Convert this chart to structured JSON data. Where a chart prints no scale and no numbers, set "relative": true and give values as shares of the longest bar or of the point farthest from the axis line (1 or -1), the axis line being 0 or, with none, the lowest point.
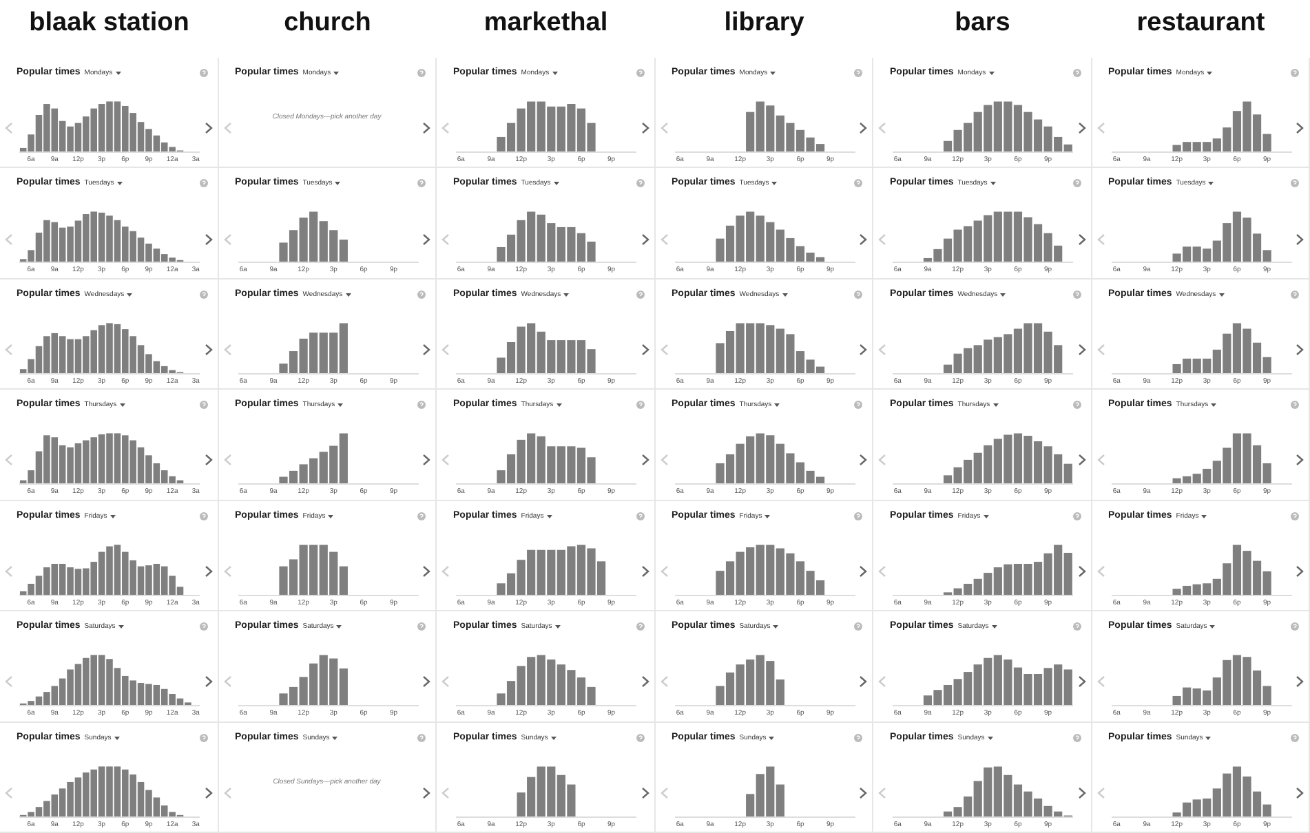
{
  "chart_data": [
    {
      "type": "bar",
      "title": "Popular times",
      "subtitle": "Mondays",
      "annotations": [
        "blaak station"
      ],
      "relative": true,
      "color": "#7f7f7f",
      "categories": [
        null,
        "6a",
        null,
        null,
        "9a",
        null,
        null,
        "12p",
        null,
        null,
        "3p",
        null,
        null,
        "6p",
        null,
        null,
        "9p",
        null,
        null,
        "12a",
        null,
        null,
        "3a"
      ],
      "values": [
        0.07,
        0.34,
        0.73,
        0.95,
        0.86,
        0.61,
        0.5,
        0.57,
        0.7,
        0.86,
        0.95,
        1,
        1,
        0.91,
        0.77,
        0.59,
        0.45,
        0.32,
        0.18,
        0.09,
        0.02,
        null,
        null
      ]
    },
    {
      "type": "bar",
      "title": "Popular times",
      "subtitle": "Mondays",
      "annotations": [
        "markethal"
      ],
      "relative": true,
      "color": "#7f7f7f",
      "categories": [
        "6a",
        null,
        null,
        "9a",
        null,
        null,
        "12p",
        null,
        null,
        "3p",
        null,
        null,
        "6p",
        null,
        null,
        "9p",
        null,
        null
      ],
      "values": [
        null,
        null,
        null,
        null,
        0.29,
        0.57,
        0.86,
        1,
        1,
        0.9,
        0.9,
        0.95,
        0.86,
        0.57,
        null,
        null,
        null,
        null
      ]
    },
    {
      "type": "bar",
      "title": "Popular times",
      "subtitle": "Mondays",
      "annotations": [
        "library"
      ],
      "relative": true,
      "color": "#7f7f7f",
      "categories": [
        "6a",
        null,
        null,
        "9a",
        null,
        null,
        "12p",
        null,
        null,
        "3p",
        null,
        null,
        "6p",
        null,
        null,
        "9p",
        null,
        null
      ],
      "values": [
        null,
        null,
        null,
        null,
        null,
        null,
        null,
        0.79,
        1,
        0.92,
        0.72,
        0.57,
        0.43,
        0.28,
        0.15,
        null,
        null,
        null
      ]
    },
    {
      "type": "bar",
      "title": "Popular times",
      "subtitle": "Mondays",
      "annotations": [
        "bars"
      ],
      "relative": true,
      "color": "#7f7f7f",
      "categories": [
        "6a",
        null,
        null,
        "9a",
        null,
        null,
        "12p",
        null,
        null,
        "3p",
        null,
        null,
        "6p",
        null,
        null,
        "9p",
        null,
        null
      ],
      "values": [
        null,
        null,
        null,
        null,
        null,
        0.21,
        0.43,
        0.57,
        0.79,
        0.93,
        1,
        1,
        0.93,
        0.79,
        0.64,
        0.5,
        0.29,
        0.14
      ]
    },
    {
      "type": "bar",
      "title": "Popular times",
      "subtitle": "Mondays",
      "annotations": [
        "restaurant"
      ],
      "relative": true,
      "color": "#7f7f7f",
      "categories": [
        "6a",
        null,
        null,
        "9a",
        null,
        null,
        "12p",
        null,
        null,
        "3p",
        null,
        null,
        "6p",
        null,
        null,
        "9p",
        null,
        null
      ],
      "values": [
        null,
        null,
        null,
        null,
        null,
        null,
        0.13,
        0.19,
        0.19,
        0.19,
        0.26,
        0.48,
        0.81,
        1,
        0.74,
        0.35,
        null,
        null
      ]
    },
    {
      "type": "bar",
      "title": "Popular times",
      "subtitle": "Tuesdays",
      "relative": true,
      "color": "#7f7f7f",
      "categories": [
        null,
        "6a",
        null,
        null,
        "9a",
        null,
        null,
        "12p",
        null,
        null,
        "3p",
        null,
        null,
        "6p",
        null,
        null,
        "9p",
        null,
        null,
        "12a",
        null,
        null,
        "3a"
      ],
      "values": [
        0.05,
        0.23,
        0.58,
        0.83,
        0.79,
        0.68,
        0.7,
        0.82,
        0.95,
        1,
        0.98,
        0.92,
        0.83,
        0.7,
        0.61,
        0.48,
        0.36,
        0.26,
        0.15,
        0.08,
        0.03,
        null,
        null
      ]
    },
    {
      "type": "bar",
      "title": "Popular times",
      "subtitle": "Tuesdays",
      "annotations": [
        "church",
        "Popular times",
        "Mondays",
        "Closed Mondays—pick another day"
      ],
      "relative": true,
      "color": "#7f7f7f",
      "categories": [
        "6a",
        null,
        null,
        "9a",
        null,
        null,
        "12p",
        null,
        null,
        "3p",
        null,
        null,
        "6p",
        null,
        null,
        "9p",
        null,
        null
      ],
      "values": [
        null,
        null,
        null,
        null,
        0.38,
        0.63,
        0.88,
        1,
        0.81,
        0.63,
        0.44,
        null,
        null,
        null,
        null,
        null,
        null,
        null
      ]
    },
    {
      "type": "bar",
      "title": "Popular times",
      "subtitle": "Tuesdays",
      "relative": true,
      "color": "#7f7f7f",
      "categories": [
        "6a",
        null,
        null,
        "9a",
        null,
        null,
        "12p",
        null,
        null,
        "3p",
        null,
        null,
        "6p",
        null,
        null,
        "9p",
        null,
        null
      ],
      "values": [
        null,
        null,
        null,
        null,
        0.29,
        0.54,
        0.83,
        1,
        0.94,
        0.77,
        0.69,
        0.69,
        0.57,
        0.4,
        null,
        null,
        null,
        null
      ]
    },
    {
      "type": "bar",
      "title": "Popular times",
      "subtitle": "Tuesdays",
      "relative": true,
      "color": "#7f7f7f",
      "categories": [
        "6a",
        null,
        null,
        "9a",
        null,
        null,
        "12p",
        null,
        null,
        "3p",
        null,
        null,
        "6p",
        null,
        null,
        "9p",
        null,
        null
      ],
      "values": [
        null,
        null,
        null,
        null,
        0.46,
        0.72,
        0.92,
        1,
        0.92,
        0.79,
        0.64,
        0.47,
        0.31,
        0.18,
        0.09,
        null,
        null,
        null
      ]
    },
    {
      "type": "bar",
      "title": "Popular times",
      "subtitle": "Tuesdays",
      "relative": true,
      "color": "#7f7f7f",
      "categories": [
        "6a",
        null,
        null,
        "9a",
        null,
        null,
        "12p",
        null,
        null,
        "3p",
        null,
        null,
        "6p",
        null,
        null,
        "9p",
        null,
        null
      ],
      "values": [
        null,
        null,
        null,
        0.07,
        0.25,
        0.46,
        0.64,
        0.71,
        0.82,
        0.93,
        1,
        1,
        1,
        0.89,
        0.75,
        0.57,
        0.32,
        null
      ]
    },
    {
      "type": "bar",
      "title": "Popular times",
      "subtitle": "Tuesdays",
      "relative": true,
      "color": "#7f7f7f",
      "categories": [
        "6a",
        null,
        null,
        "9a",
        null,
        null,
        "12p",
        null,
        null,
        "3p",
        null,
        null,
        "6p",
        null,
        null,
        "9p",
        null,
        null
      ],
      "values": [
        null,
        null,
        null,
        null,
        null,
        null,
        0.16,
        0.3,
        0.3,
        0.26,
        0.42,
        0.77,
        1,
        0.88,
        0.56,
        0.23,
        null,
        null
      ]
    },
    {
      "type": "bar",
      "title": "Popular times",
      "subtitle": "Wednesdays",
      "relative": true,
      "color": "#7f7f7f",
      "categories": [
        null,
        "6a",
        null,
        null,
        "9a",
        null,
        null,
        "12p",
        null,
        null,
        "3p",
        null,
        null,
        "6p",
        null,
        null,
        "9p",
        null,
        null,
        "12a",
        null,
        null,
        "3a"
      ],
      "values": [
        0.08,
        0.28,
        0.54,
        0.74,
        0.8,
        0.74,
        0.68,
        0.68,
        0.74,
        0.86,
        0.96,
        1,
        0.98,
        0.88,
        0.74,
        0.56,
        0.38,
        0.24,
        0.14,
        0.06,
        0.02,
        null,
        null
      ]
    },
    {
      "type": "bar",
      "title": "Popular times",
      "subtitle": "Wednesdays",
      "relative": true,
      "color": "#7f7f7f",
      "categories": [
        "6a",
        null,
        null,
        "9a",
        null,
        null,
        "12p",
        null,
        null,
        "3p",
        null,
        null,
        "6p",
        null,
        null,
        "9p",
        null,
        null
      ],
      "values": [
        null,
        null,
        null,
        null,
        0.19,
        0.44,
        0.69,
        0.81,
        0.81,
        0.81,
        1,
        null,
        null,
        null,
        null,
        null,
        null,
        null
      ]
    },
    {
      "type": "bar",
      "title": "Popular times",
      "subtitle": "Wednesdays",
      "relative": true,
      "color": "#7f7f7f",
      "categories": [
        "6a",
        null,
        null,
        "9a",
        null,
        null,
        "12p",
        null,
        null,
        "3p",
        null,
        null,
        "6p",
        null,
        null,
        "9p",
        null,
        null
      ],
      "values": [
        null,
        null,
        null,
        null,
        0.31,
        0.62,
        0.93,
        1,
        0.83,
        0.66,
        0.66,
        0.66,
        0.66,
        0.48,
        null,
        null,
        null,
        null
      ]
    },
    {
      "type": "bar",
      "title": "Popular times",
      "subtitle": "Wednesdays",
      "relative": true,
      "color": "#7f7f7f",
      "categories": [
        "6a",
        null,
        null,
        "9a",
        null,
        null,
        "12p",
        null,
        null,
        "3p",
        null,
        null,
        "6p",
        null,
        null,
        "9p",
        null,
        null
      ],
      "values": [
        null,
        null,
        null,
        null,
        0.6,
        0.84,
        1,
        1,
        1,
        0.96,
        0.89,
        0.78,
        0.44,
        0.27,
        0.13,
        null,
        null,
        null
      ]
    },
    {
      "type": "bar",
      "title": "Popular times",
      "subtitle": "Wednesdays",
      "relative": true,
      "color": "#7f7f7f",
      "categories": [
        "6a",
        null,
        null,
        "9a",
        null,
        null,
        "12p",
        null,
        null,
        "3p",
        null,
        null,
        "6p",
        null,
        null,
        "9p",
        null,
        null
      ],
      "values": [
        null,
        null,
        null,
        null,
        null,
        0.17,
        0.39,
        0.5,
        0.56,
        0.67,
        0.72,
        0.78,
        0.89,
        1,
        1,
        0.83,
        0.56,
        null
      ]
    },
    {
      "type": "bar",
      "title": "Popular times",
      "subtitle": "Wednesdays",
      "relative": true,
      "color": "#7f7f7f",
      "categories": [
        "6a",
        null,
        null,
        "9a",
        null,
        null,
        "12p",
        null,
        null,
        "3p",
        null,
        null,
        "6p",
        null,
        null,
        "9p",
        null,
        null
      ],
      "values": [
        null,
        null,
        null,
        null,
        null,
        null,
        0.18,
        0.29,
        0.29,
        0.29,
        0.47,
        0.79,
        1,
        0.89,
        0.61,
        0.32,
        null,
        null
      ]
    },
    {
      "type": "bar",
      "title": "Popular times",
      "subtitle": "Thursdays",
      "relative": true,
      "color": "#7f7f7f",
      "categories": [
        null,
        "6a",
        null,
        null,
        "9a",
        null,
        null,
        "12p",
        null,
        null,
        "3p",
        null,
        null,
        "6p",
        null,
        null,
        "9p",
        null,
        null,
        "12a",
        null,
        null,
        "3a"
      ],
      "values": [
        0.06,
        0.26,
        0.64,
        0.96,
        0.92,
        0.76,
        0.72,
        0.8,
        0.86,
        0.92,
        0.98,
        1,
        1,
        0.96,
        0.86,
        0.72,
        0.56,
        0.4,
        0.26,
        0.14,
        0.06,
        null,
        null
      ]
    },
    {
      "type": "bar",
      "title": "Popular times",
      "subtitle": "Thursdays",
      "relative": true,
      "color": "#7f7f7f",
      "categories": [
        "6a",
        null,
        null,
        "9a",
        null,
        null,
        "12p",
        null,
        null,
        "3p",
        null,
        null,
        "6p",
        null,
        null,
        "9p",
        null,
        null
      ],
      "values": [
        null,
        null,
        null,
        null,
        0.13,
        0.25,
        0.38,
        0.5,
        0.63,
        0.75,
        1,
        null,
        null,
        null,
        null,
        null,
        null,
        null
      ]
    },
    {
      "type": "bar",
      "title": "Popular times",
      "subtitle": "Thursdays",
      "relative": true,
      "color": "#7f7f7f",
      "categories": [
        "6a",
        null,
        null,
        "9a",
        null,
        null,
        "12p",
        null,
        null,
        "3p",
        null,
        null,
        "6p",
        null,
        null,
        "9p",
        null,
        null
      ],
      "values": [
        null,
        null,
        null,
        null,
        0.26,
        0.58,
        0.87,
        1,
        0.94,
        0.74,
        0.74,
        0.74,
        0.71,
        0.52,
        null,
        null,
        null,
        null
      ]
    },
    {
      "type": "bar",
      "title": "Popular times",
      "subtitle": "Thursdays",
      "relative": true,
      "color": "#7f7f7f",
      "categories": [
        "6a",
        null,
        null,
        "9a",
        null,
        null,
        "12p",
        null,
        null,
        "3p",
        null,
        null,
        "6p",
        null,
        null,
        "9p",
        null,
        null
      ],
      "values": [
        null,
        null,
        null,
        null,
        0.4,
        0.58,
        0.79,
        0.94,
        1,
        0.96,
        0.79,
        0.6,
        0.42,
        0.25,
        0.13,
        null,
        null,
        null
      ]
    },
    {
      "type": "bar",
      "title": "Popular times",
      "subtitle": "Thursdays",
      "relative": true,
      "color": "#7f7f7f",
      "categories": [
        "6a",
        null,
        null,
        "9a",
        null,
        null,
        "12p",
        null,
        null,
        "3p",
        null,
        null,
        "6p",
        null,
        null,
        "9p",
        null,
        null
      ],
      "values": [
        null,
        null,
        null,
        null,
        null,
        0.16,
        0.32,
        0.47,
        0.61,
        0.76,
        0.89,
        0.97,
        1,
        0.95,
        0.84,
        0.74,
        0.58,
        0.39
      ]
    },
    {
      "type": "bar",
      "title": "Popular times",
      "subtitle": "Thursdays",
      "relative": true,
      "color": "#7f7f7f",
      "categories": [
        "6a",
        null,
        null,
        "9a",
        null,
        null,
        "12p",
        null,
        null,
        "3p",
        null,
        null,
        "6p",
        null,
        null,
        "9p",
        null,
        null
      ],
      "values": [
        null,
        null,
        null,
        null,
        null,
        null,
        0.1,
        0.14,
        0.19,
        0.29,
        0.45,
        0.71,
        1,
        1,
        0.76,
        0.4,
        null,
        null
      ]
    },
    {
      "type": "bar",
      "title": "Popular times",
      "subtitle": "Fridays",
      "relative": true,
      "color": "#7f7f7f",
      "categories": [
        null,
        "6a",
        null,
        null,
        "9a",
        null,
        null,
        "12p",
        null,
        null,
        "3p",
        null,
        null,
        "6p",
        null,
        null,
        "9p",
        null,
        null,
        "12a",
        null,
        null,
        "3a"
      ],
      "values": [
        0.07,
        0.22,
        0.38,
        0.55,
        0.62,
        0.62,
        0.55,
        0.52,
        0.53,
        0.66,
        0.86,
        0.97,
        1,
        0.86,
        0.69,
        0.57,
        0.59,
        0.62,
        0.57,
        0.38,
        0.16,
        null,
        null
      ]
    },
    {
      "type": "bar",
      "title": "Popular times",
      "subtitle": "Fridays",
      "relative": true,
      "color": "#7f7f7f",
      "categories": [
        "6a",
        null,
        null,
        "9a",
        null,
        null,
        "12p",
        null,
        null,
        "3p",
        null,
        null,
        "6p",
        null,
        null,
        "9p",
        null,
        null
      ],
      "values": [
        null,
        null,
        null,
        null,
        0.57,
        0.71,
        1,
        1,
        1,
        0.86,
        0.57,
        null,
        null,
        null,
        null,
        null,
        null,
        null
      ]
    },
    {
      "type": "bar",
      "title": "Popular times",
      "subtitle": "Fridays",
      "relative": true,
      "color": "#7f7f7f",
      "categories": [
        "6a",
        null,
        null,
        "9a",
        null,
        null,
        "12p",
        null,
        null,
        "3p",
        null,
        null,
        "6p",
        null,
        null,
        "9p",
        null,
        null
      ],
      "values": [
        null,
        null,
        null,
        null,
        0.23,
        0.43,
        0.7,
        0.9,
        0.9,
        0.9,
        0.9,
        0.97,
        1,
        0.93,
        0.67,
        null,
        null,
        null
      ]
    },
    {
      "type": "bar",
      "title": "Popular times",
      "subtitle": "Fridays",
      "relative": true,
      "color": "#7f7f7f",
      "categories": [
        "6a",
        null,
        null,
        "9a",
        null,
        null,
        "12p",
        null,
        null,
        "3p",
        null,
        null,
        "6p",
        null,
        null,
        "9p",
        null,
        null
      ],
      "values": [
        null,
        null,
        null,
        null,
        0.48,
        0.67,
        0.86,
        0.95,
        1,
        1,
        0.93,
        0.83,
        0.67,
        0.48,
        0.29,
        null,
        null,
        null
      ]
    },
    {
      "type": "bar",
      "title": "Popular times",
      "subtitle": "Fridays",
      "relative": true,
      "color": "#7f7f7f",
      "categories": [
        "6a",
        null,
        null,
        "9a",
        null,
        null,
        "12p",
        null,
        null,
        "3p",
        null,
        null,
        "6p",
        null,
        null,
        "9p",
        null,
        null
      ],
      "values": [
        null,
        null,
        null,
        null,
        null,
        0.05,
        0.13,
        0.22,
        0.32,
        0.44,
        0.55,
        0.61,
        0.62,
        0.62,
        0.66,
        0.83,
        1,
        0.84
      ]
    },
    {
      "type": "bar",
      "title": "Popular times",
      "subtitle": "Fridays",
      "relative": true,
      "color": "#7f7f7f",
      "categories": [
        "6a",
        null,
        null,
        "9a",
        null,
        null,
        "12p",
        null,
        null,
        "3p",
        null,
        null,
        "6p",
        null,
        null,
        "9p",
        null,
        null
      ],
      "values": [
        null,
        null,
        null,
        null,
        null,
        null,
        0.12,
        0.18,
        0.21,
        0.23,
        0.32,
        0.63,
        1,
        0.88,
        0.68,
        0.47,
        null,
        null
      ]
    },
    {
      "type": "bar",
      "title": "Popular times",
      "subtitle": "Saturdays",
      "relative": true,
      "color": "#7f7f7f",
      "categories": [
        null,
        "6a",
        null,
        null,
        "9a",
        null,
        null,
        "12p",
        null,
        null,
        "3p",
        null,
        null,
        "6p",
        null,
        null,
        "9p",
        null,
        null,
        "12a",
        null,
        null,
        "3a"
      ],
      "values": [
        0.03,
        0.08,
        0.17,
        0.26,
        0.38,
        0.53,
        0.71,
        0.82,
        0.94,
        1,
        1,
        0.92,
        0.74,
        0.58,
        0.49,
        0.44,
        0.42,
        0.4,
        0.32,
        0.22,
        0.13,
        0.05,
        null
      ]
    },
    {
      "type": "bar",
      "title": "Popular times",
      "subtitle": "Saturdays",
      "annotations": [
        "Popular times",
        "Sundays",
        "Closed Sundays—pick another day"
      ],
      "relative": true,
      "color": "#7f7f7f",
      "categories": [
        "6a",
        null,
        null,
        "9a",
        null,
        null,
        "12p",
        null,
        null,
        "3p",
        null,
        null,
        "6p",
        null,
        null,
        "9p",
        null,
        null
      ],
      "values": [
        null,
        null,
        null,
        null,
        0.23,
        0.36,
        0.56,
        0.83,
        1,
        0.93,
        0.73,
        null,
        null,
        null,
        null,
        null,
        null,
        null
      ]
    },
    {
      "type": "bar",
      "title": "Popular times",
      "subtitle": "Saturdays",
      "relative": true,
      "color": "#7f7f7f",
      "categories": [
        "6a",
        null,
        null,
        "9a",
        null,
        null,
        "12p",
        null,
        null,
        "3p",
        null,
        null,
        "6p",
        null,
        null,
        "9p",
        null,
        null
      ],
      "values": [
        null,
        null,
        null,
        null,
        0.23,
        0.48,
        0.78,
        0.96,
        1,
        0.91,
        0.81,
        0.7,
        0.55,
        0.36,
        null,
        null,
        null,
        null
      ]
    },
    {
      "type": "bar",
      "title": "Popular times",
      "subtitle": "Saturdays",
      "relative": true,
      "color": "#7f7f7f",
      "categories": [
        "6a",
        null,
        null,
        "9a",
        null,
        null,
        "12p",
        null,
        null,
        "3p",
        null,
        null,
        "6p",
        null,
        null,
        "9p",
        null,
        null
      ],
      "values": [
        null,
        null,
        null,
        null,
        0.38,
        0.65,
        0.81,
        0.91,
        1,
        0.88,
        0.51,
        null,
        null,
        null,
        null,
        null,
        null,
        null
      ]
    },
    {
      "type": "bar",
      "title": "Popular times",
      "subtitle": "Saturdays",
      "relative": true,
      "color": "#7f7f7f",
      "categories": [
        "6a",
        null,
        null,
        "9a",
        null,
        null,
        "12p",
        null,
        null,
        "3p",
        null,
        null,
        "6p",
        null,
        null,
        "9p",
        null,
        null
      ],
      "values": [
        null,
        null,
        null,
        0.19,
        0.3,
        0.4,
        0.52,
        0.66,
        0.81,
        0.94,
        1,
        0.91,
        0.75,
        0.62,
        0.62,
        0.74,
        0.81,
        0.71
      ]
    },
    {
      "type": "bar",
      "title": "Popular times",
      "subtitle": "Saturdays",
      "relative": true,
      "color": "#7f7f7f",
      "categories": [
        "6a",
        null,
        null,
        "9a",
        null,
        null,
        "12p",
        null,
        null,
        "3p",
        null,
        null,
        "6p",
        null,
        null,
        "9p",
        null,
        null
      ],
      "values": [
        null,
        null,
        null,
        null,
        null,
        null,
        0.18,
        0.35,
        0.33,
        0.29,
        0.55,
        0.9,
        1,
        0.96,
        0.69,
        0.38,
        null,
        null
      ]
    },
    {
      "type": "bar",
      "title": "Popular times",
      "subtitle": "Sundays",
      "relative": true,
      "color": "#7f7f7f",
      "categories": [
        null,
        "6a",
        null,
        null,
        "9a",
        null,
        null,
        "12p",
        null,
        null,
        "3p",
        null,
        null,
        "6p",
        null,
        null,
        "9p",
        null,
        null,
        "12a",
        null,
        null,
        "3a"
      ],
      "values": [
        0.03,
        0.09,
        0.19,
        0.31,
        0.44,
        0.56,
        0.69,
        0.78,
        0.88,
        0.94,
        1,
        1,
        1,
        0.94,
        0.84,
        0.69,
        0.53,
        0.38,
        0.22,
        0.09,
        0.03,
        null,
        null
      ]
    },
    {
      "type": "bar",
      "title": "Popular times",
      "subtitle": "Sundays",
      "relative": true,
      "color": "#7f7f7f",
      "categories": [
        "6a",
        null,
        null,
        "9a",
        null,
        null,
        "12p",
        null,
        null,
        "3p",
        null,
        null,
        "6p",
        null,
        null,
        "9p",
        null,
        null
      ],
      "values": [
        null,
        null,
        null,
        null,
        null,
        null,
        0.48,
        0.79,
        1,
        1,
        0.83,
        0.64,
        null,
        null,
        null,
        null,
        null,
        null
      ]
    },
    {
      "type": "bar",
      "title": "Popular times",
      "subtitle": "Sundays",
      "relative": true,
      "color": "#7f7f7f",
      "categories": [
        "6a",
        null,
        null,
        "9a",
        null,
        null,
        "12p",
        null,
        null,
        "3p",
        null,
        null,
        "6p",
        null,
        null,
        "9p",
        null,
        null
      ],
      "values": [
        null,
        null,
        null,
        null,
        null,
        null,
        null,
        0.45,
        0.85,
        1,
        0.64,
        null,
        null,
        null,
        null,
        null,
        null,
        null
      ]
    },
    {
      "type": "bar",
      "title": "Popular times",
      "subtitle": "Sundays",
      "relative": true,
      "color": "#7f7f7f",
      "categories": [
        "6a",
        null,
        null,
        "9a",
        null,
        null,
        "12p",
        null,
        null,
        "3p",
        null,
        null,
        "6p",
        null,
        null,
        "9p",
        null,
        null
      ],
      "values": [
        null,
        null,
        null,
        null,
        null,
        0.1,
        0.19,
        0.4,
        0.71,
        0.98,
        1,
        0.83,
        0.64,
        0.5,
        0.36,
        0.21,
        0.1,
        0.02
      ]
    },
    {
      "type": "bar",
      "title": "Popular times",
      "subtitle": "Sundays",
      "relative": true,
      "color": "#7f7f7f",
      "categories": [
        "6a",
        null,
        null,
        "9a",
        null,
        null,
        "12p",
        null,
        null,
        "3p",
        null,
        null,
        "6p",
        null,
        null,
        "9p",
        null,
        null
      ],
      "values": [
        null,
        null,
        null,
        null,
        null,
        null,
        0.08,
        0.28,
        0.34,
        0.36,
        0.56,
        0.86,
        1,
        0.8,
        0.5,
        0.24,
        null,
        null
      ]
    }
  ]
}
